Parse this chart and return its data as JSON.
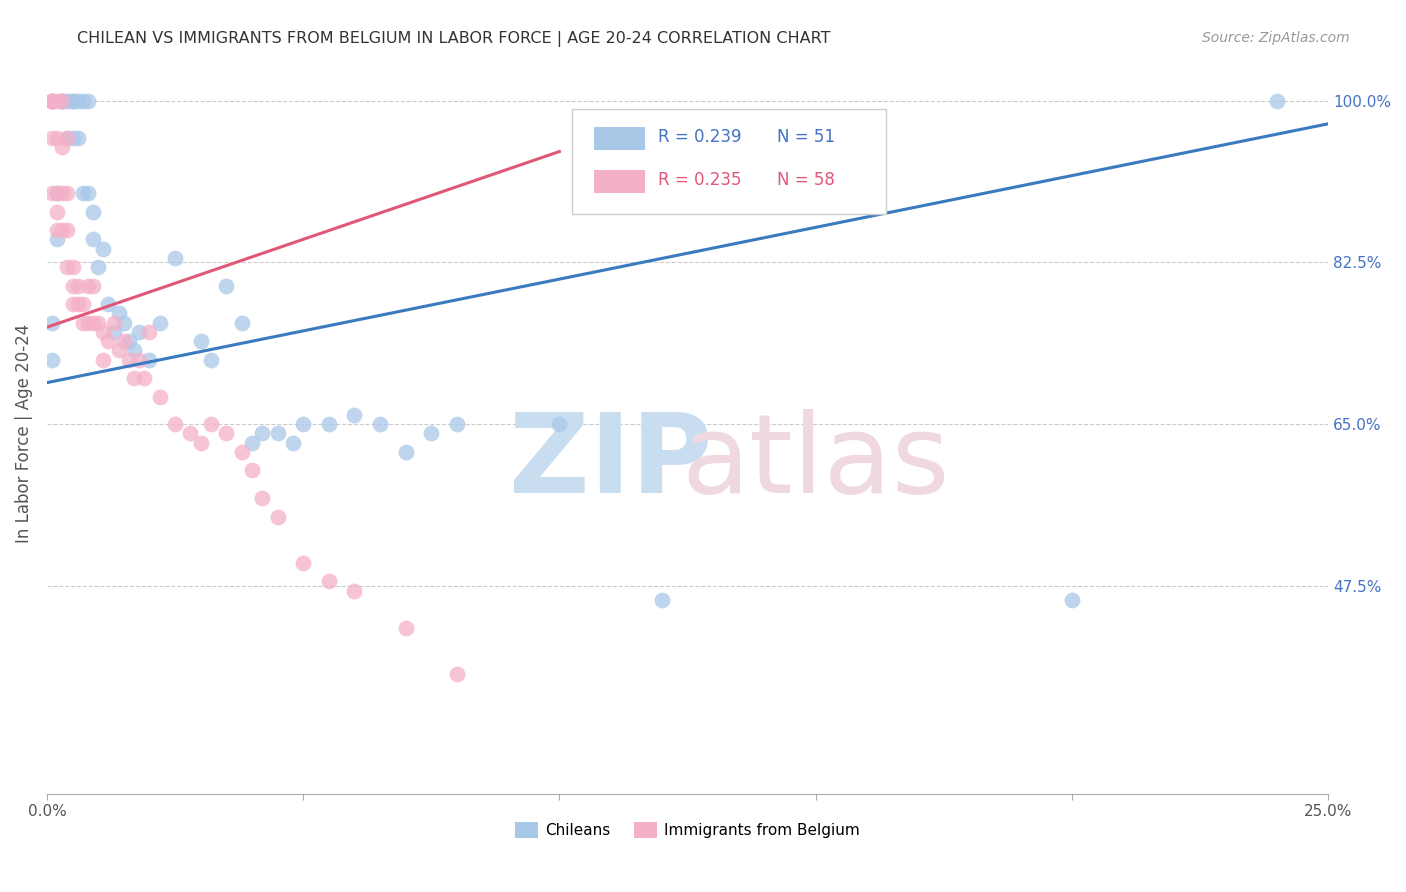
{
  "title": "CHILEAN VS IMMIGRANTS FROM BELGIUM IN LABOR FORCE | AGE 20-24 CORRELATION CHART",
  "source": "Source: ZipAtlas.com",
  "ylabel": "In Labor Force | Age 20-24",
  "xlim": [
    0.0,
    0.25
  ],
  "ylim": [
    0.25,
    1.03
  ],
  "xticks": [
    0.0,
    0.05,
    0.1,
    0.15,
    0.2,
    0.25
  ],
  "xticklabels": [
    "0.0%",
    "",
    "",
    "",
    "",
    "25.0%"
  ],
  "yticks": [
    0.475,
    0.65,
    0.825,
    1.0
  ],
  "yticklabels": [
    "47.5%",
    "65.0%",
    "82.5%",
    "100.0%"
  ],
  "legend_r_blue": "R = 0.239",
  "legend_n_blue": "N = 51",
  "legend_r_pink": "R = 0.235",
  "legend_n_pink": "N = 58",
  "blue_color": "#a8c8e8",
  "pink_color": "#f4b0c8",
  "blue_line_color": "#3a7abf",
  "pink_line_color": "#e05878",
  "blue_trend": [
    0.0,
    0.25,
    0.695,
    0.975
  ],
  "pink_trend": [
    0.0,
    0.1,
    0.755,
    0.945
  ],
  "blue_x": [
    0.001,
    0.001,
    0.002,
    0.002,
    0.003,
    0.003,
    0.003,
    0.004,
    0.004,
    0.005,
    0.005,
    0.005,
    0.006,
    0.006,
    0.007,
    0.007,
    0.008,
    0.008,
    0.009,
    0.009,
    0.01,
    0.011,
    0.012,
    0.013,
    0.014,
    0.015,
    0.016,
    0.017,
    0.018,
    0.02,
    0.022,
    0.025,
    0.03,
    0.032,
    0.035,
    0.038,
    0.04,
    0.042,
    0.045,
    0.048,
    0.05,
    0.055,
    0.06,
    0.065,
    0.07,
    0.075,
    0.08,
    0.1,
    0.12,
    0.2,
    0.24
  ],
  "blue_y": [
    0.76,
    0.72,
    0.9,
    0.85,
    1.0,
    1.0,
    1.0,
    1.0,
    0.96,
    1.0,
    0.96,
    1.0,
    1.0,
    0.96,
    1.0,
    0.9,
    1.0,
    0.9,
    0.85,
    0.88,
    0.82,
    0.84,
    0.78,
    0.75,
    0.77,
    0.76,
    0.74,
    0.73,
    0.75,
    0.72,
    0.76,
    0.83,
    0.74,
    0.72,
    0.8,
    0.76,
    0.63,
    0.64,
    0.64,
    0.63,
    0.65,
    0.65,
    0.66,
    0.65,
    0.62,
    0.64,
    0.65,
    0.65,
    0.46,
    0.46,
    1.0
  ],
  "pink_x": [
    0.001,
    0.001,
    0.001,
    0.001,
    0.001,
    0.001,
    0.001,
    0.002,
    0.002,
    0.002,
    0.002,
    0.002,
    0.003,
    0.003,
    0.003,
    0.003,
    0.004,
    0.004,
    0.004,
    0.004,
    0.005,
    0.005,
    0.005,
    0.006,
    0.006,
    0.007,
    0.007,
    0.008,
    0.008,
    0.009,
    0.009,
    0.01,
    0.011,
    0.011,
    0.012,
    0.013,
    0.014,
    0.015,
    0.016,
    0.017,
    0.018,
    0.019,
    0.02,
    0.022,
    0.025,
    0.028,
    0.03,
    0.032,
    0.035,
    0.038,
    0.04,
    0.042,
    0.045,
    0.05,
    0.055,
    0.06,
    0.07,
    0.08
  ],
  "pink_y": [
    1.0,
    1.0,
    1.0,
    1.0,
    1.0,
    0.96,
    0.9,
    1.0,
    0.96,
    0.9,
    0.86,
    0.88,
    1.0,
    0.95,
    0.9,
    0.86,
    0.96,
    0.9,
    0.86,
    0.82,
    0.82,
    0.78,
    0.8,
    0.8,
    0.78,
    0.78,
    0.76,
    0.8,
    0.76,
    0.8,
    0.76,
    0.76,
    0.75,
    0.72,
    0.74,
    0.76,
    0.73,
    0.74,
    0.72,
    0.7,
    0.72,
    0.7,
    0.75,
    0.68,
    0.65,
    0.64,
    0.63,
    0.65,
    0.64,
    0.62,
    0.6,
    0.57,
    0.55,
    0.5,
    0.48,
    0.47,
    0.43,
    0.38
  ]
}
